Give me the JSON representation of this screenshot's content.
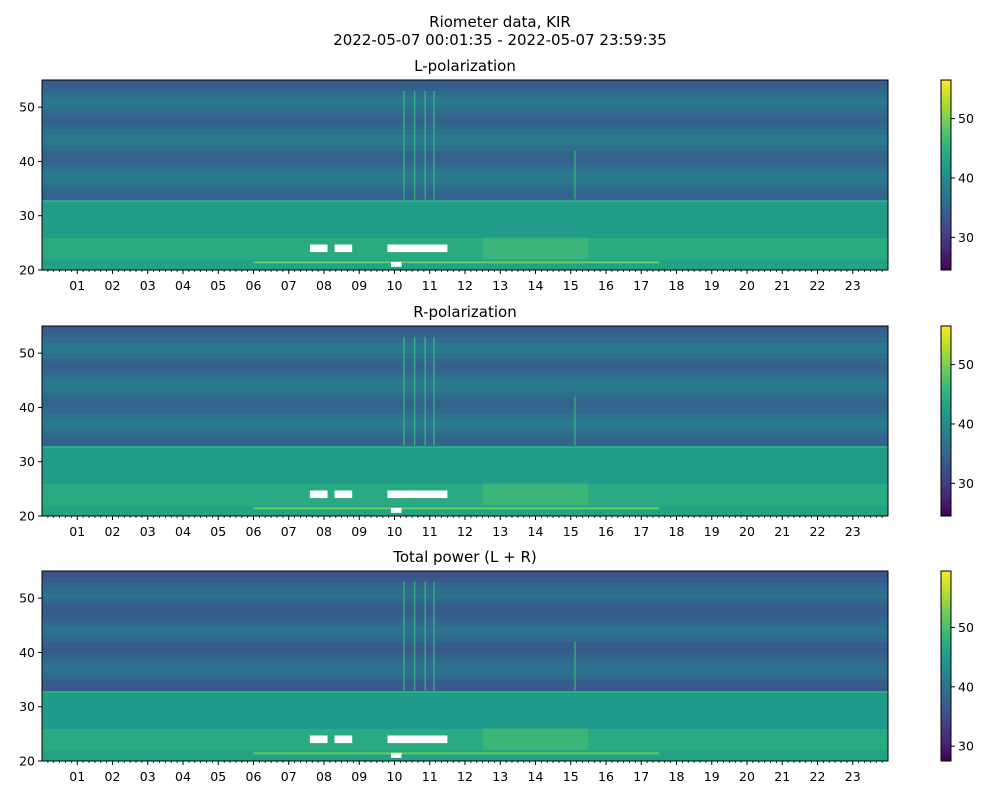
{
  "figure": {
    "title_line1": "Riometer data, KIR",
    "title_line2": "2022-05-07 00:01:35 - 2022-05-07 23:59:35"
  },
  "chart_data": [
    {
      "type": "heatmap",
      "title": "L-polarization",
      "xlabel": "",
      "ylabel": "",
      "x_tick_labels": [
        "01",
        "02",
        "03",
        "04",
        "05",
        "06",
        "07",
        "08",
        "09",
        "10",
        "11",
        "12",
        "13",
        "14",
        "15",
        "16",
        "17",
        "18",
        "19",
        "20",
        "21",
        "22",
        "23"
      ],
      "x_range_hours": [
        0.0,
        24.0
      ],
      "y_ticks": [
        20,
        30,
        40,
        50
      ],
      "ylim": [
        20,
        55
      ],
      "colorbar": {
        "ticks": [
          30,
          40,
          50
        ],
        "range": [
          24.5,
          56.5
        ],
        "colormap": "viridis"
      },
      "features": {
        "background_value": 36,
        "low_band_value": 44,
        "white_saturation_rows_at_y": 24,
        "vertical_spikes_hours": [
          10.25,
          10.55,
          10.85,
          11.1,
          15.1
        ]
      }
    },
    {
      "type": "heatmap",
      "title": "R-polarization",
      "xlabel": "",
      "ylabel": "",
      "x_tick_labels": [
        "01",
        "02",
        "03",
        "04",
        "05",
        "06",
        "07",
        "08",
        "09",
        "10",
        "11",
        "12",
        "13",
        "14",
        "15",
        "16",
        "17",
        "18",
        "19",
        "20",
        "21",
        "22",
        "23"
      ],
      "x_range_hours": [
        0.0,
        24.0
      ],
      "y_ticks": [
        20,
        30,
        40,
        50
      ],
      "ylim": [
        20,
        55
      ],
      "colorbar": {
        "ticks": [
          30,
          40,
          50
        ],
        "range": [
          24.5,
          56.5
        ],
        "colormap": "viridis"
      },
      "features": {
        "background_value": 36,
        "low_band_value": 44,
        "white_saturation_rows_at_y": 24,
        "vertical_spikes_hours": [
          10.25,
          10.55,
          10.85,
          11.1,
          15.1
        ]
      }
    },
    {
      "type": "heatmap",
      "title": "Total power (L + R)",
      "xlabel": "",
      "ylabel": "",
      "x_tick_labels": [
        "01",
        "02",
        "03",
        "04",
        "05",
        "06",
        "07",
        "08",
        "09",
        "10",
        "11",
        "12",
        "13",
        "14",
        "15",
        "16",
        "17",
        "18",
        "19",
        "20",
        "21",
        "22",
        "23"
      ],
      "x_range_hours": [
        0.0,
        24.0
      ],
      "y_ticks": [
        20,
        30,
        40,
        50
      ],
      "ylim": [
        20,
        55
      ],
      "colorbar": {
        "ticks": [
          30,
          40,
          50
        ],
        "range": [
          27.5,
          59.5
        ],
        "colormap": "viridis"
      },
      "features": {
        "background_value": 38,
        "low_band_value": 47,
        "white_saturation_rows_at_y": 24,
        "vertical_spikes_hours": [
          10.25,
          10.55,
          10.85,
          11.1,
          15.1
        ]
      }
    }
  ]
}
